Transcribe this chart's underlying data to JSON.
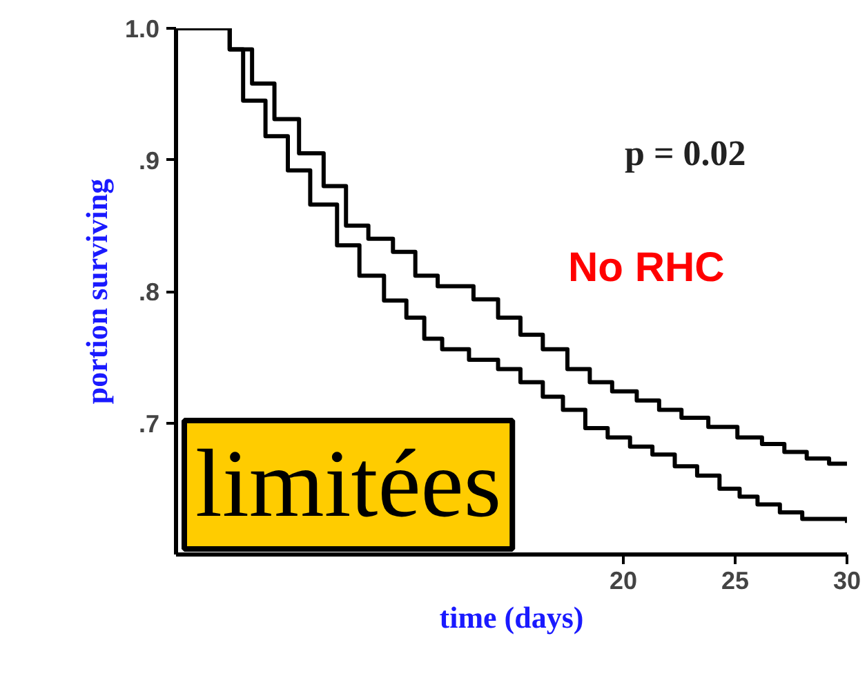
{
  "chart_data": {
    "type": "step",
    "xlabel": "time (days)",
    "ylabel": "portion surviving",
    "xlim": [
      0,
      30
    ],
    "ylim": [
      0.6,
      1.0
    ],
    "xticks": [
      20,
      25,
      30
    ],
    "yticks": [
      {
        "value": 0.7,
        "label": ".7"
      },
      {
        "value": 0.8,
        "label": ".8"
      },
      {
        "value": 0.9,
        "label": ".9"
      },
      {
        "value": 1.0,
        "label": "1.0"
      }
    ],
    "grid": false,
    "legend": false,
    "marker": "none",
    "line_style": "solid",
    "annotations": [
      "p = 0.02",
      "No RHC",
      "limitées"
    ],
    "series": [
      {
        "color": "#000000",
        "x": [
          0,
          2.4,
          3.4,
          4.4,
          5.5,
          6.6,
          7.6,
          8.6,
          9.7,
          10.7,
          11.7,
          13.3,
          14.4,
          15.4,
          16.4,
          17.5,
          18.5,
          19.5,
          20.6,
          21.6,
          22.6,
          23.8,
          25.1,
          26.2,
          27.2,
          28.2,
          29.2,
          30
        ],
        "values": [
          1.0,
          0.984,
          0.958,
          0.931,
          0.905,
          0.88,
          0.85,
          0.84,
          0.83,
          0.812,
          0.804,
          0.794,
          0.78,
          0.767,
          0.756,
          0.741,
          0.731,
          0.724,
          0.717,
          0.71,
          0.704,
          0.697,
          0.689,
          0.684,
          0.678,
          0.673,
          0.669,
          0.669
        ]
      },
      {
        "color": "#000000",
        "x": [
          0,
          2.4,
          3.0,
          4.0,
          5.0,
          6.0,
          7.2,
          8.2,
          9.3,
          10.3,
          11.1,
          11.9,
          13.1,
          14.4,
          15.4,
          16.4,
          17.3,
          18.3,
          19.3,
          20.3,
          21.3,
          22.3,
          23.3,
          24.3,
          25.2,
          26.0,
          27.0,
          28.0,
          30
        ],
        "values": [
          1.0,
          0.984,
          0.945,
          0.918,
          0.892,
          0.866,
          0.835,
          0.812,
          0.793,
          0.78,
          0.764,
          0.756,
          0.748,
          0.741,
          0.731,
          0.72,
          0.71,
          0.696,
          0.689,
          0.682,
          0.676,
          0.667,
          0.66,
          0.65,
          0.644,
          0.638,
          0.632,
          0.627,
          0.624
        ]
      }
    ]
  }
}
